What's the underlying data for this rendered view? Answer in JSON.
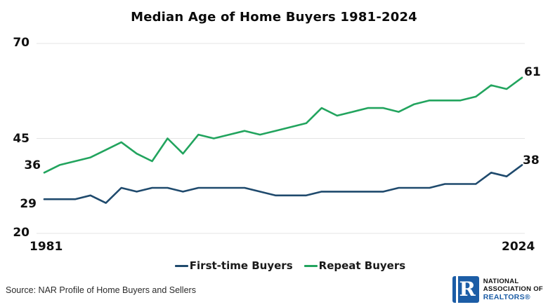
{
  "chart_data": {
    "type": "line",
    "title": "Median Age of Home Buyers 1981-2024",
    "x": [
      1981,
      1985,
      1987,
      1989,
      1991,
      1993,
      1995,
      1997,
      1999,
      2001,
      2003,
      2004,
      2005,
      2006,
      2007,
      2008,
      2009,
      2010,
      2011,
      2012,
      2013,
      2014,
      2015,
      2016,
      2017,
      2018,
      2019,
      2020,
      2021,
      2022,
      2023,
      2024
    ],
    "series": [
      {
        "name": "First-time Buyers",
        "color": "#1f4a6d",
        "values": [
          29,
          29,
          29,
          30,
          28,
          32,
          31,
          32,
          32,
          31,
          32,
          32,
          32,
          32,
          31,
          30,
          30,
          30,
          31,
          31,
          31,
          31,
          31,
          32,
          32,
          32,
          33,
          33,
          33,
          36,
          35,
          38
        ]
      },
      {
        "name": "Repeat Buyers",
        "color": "#22a45e",
        "values": [
          36,
          38,
          39,
          40,
          42,
          44,
          41,
          39,
          45,
          41,
          46,
          45,
          46,
          47,
          46,
          47,
          48,
          49,
          53,
          51,
          52,
          53,
          53,
          52,
          54,
          55,
          55,
          55,
          56,
          59,
          58,
          61
        ]
      }
    ],
    "ylim": [
      20,
      70
    ],
    "yticks": [
      70,
      45,
      20
    ],
    "xtick_labels": [
      "1981",
      "2024"
    ],
    "grid": "horizontal gridlines only",
    "legend_position": "bottom center",
    "point_labels": {
      "first_time_start": 29,
      "first_time_end": 38,
      "repeat_start": 36,
      "repeat_end": 61
    }
  },
  "source_note": "Source: NAR Profile of Home Buyers and Sellers",
  "logo": {
    "letter": "R",
    "line1": "NATIONAL",
    "line2": "ASSOCIATION OF",
    "line3": "REALTORS®"
  },
  "colors": {
    "first_time_line": "#1f4a6d",
    "repeat_line": "#22a45e",
    "gridline": "#e4e4e4",
    "logo_blue": "#1c5da6",
    "text": "#111111"
  }
}
